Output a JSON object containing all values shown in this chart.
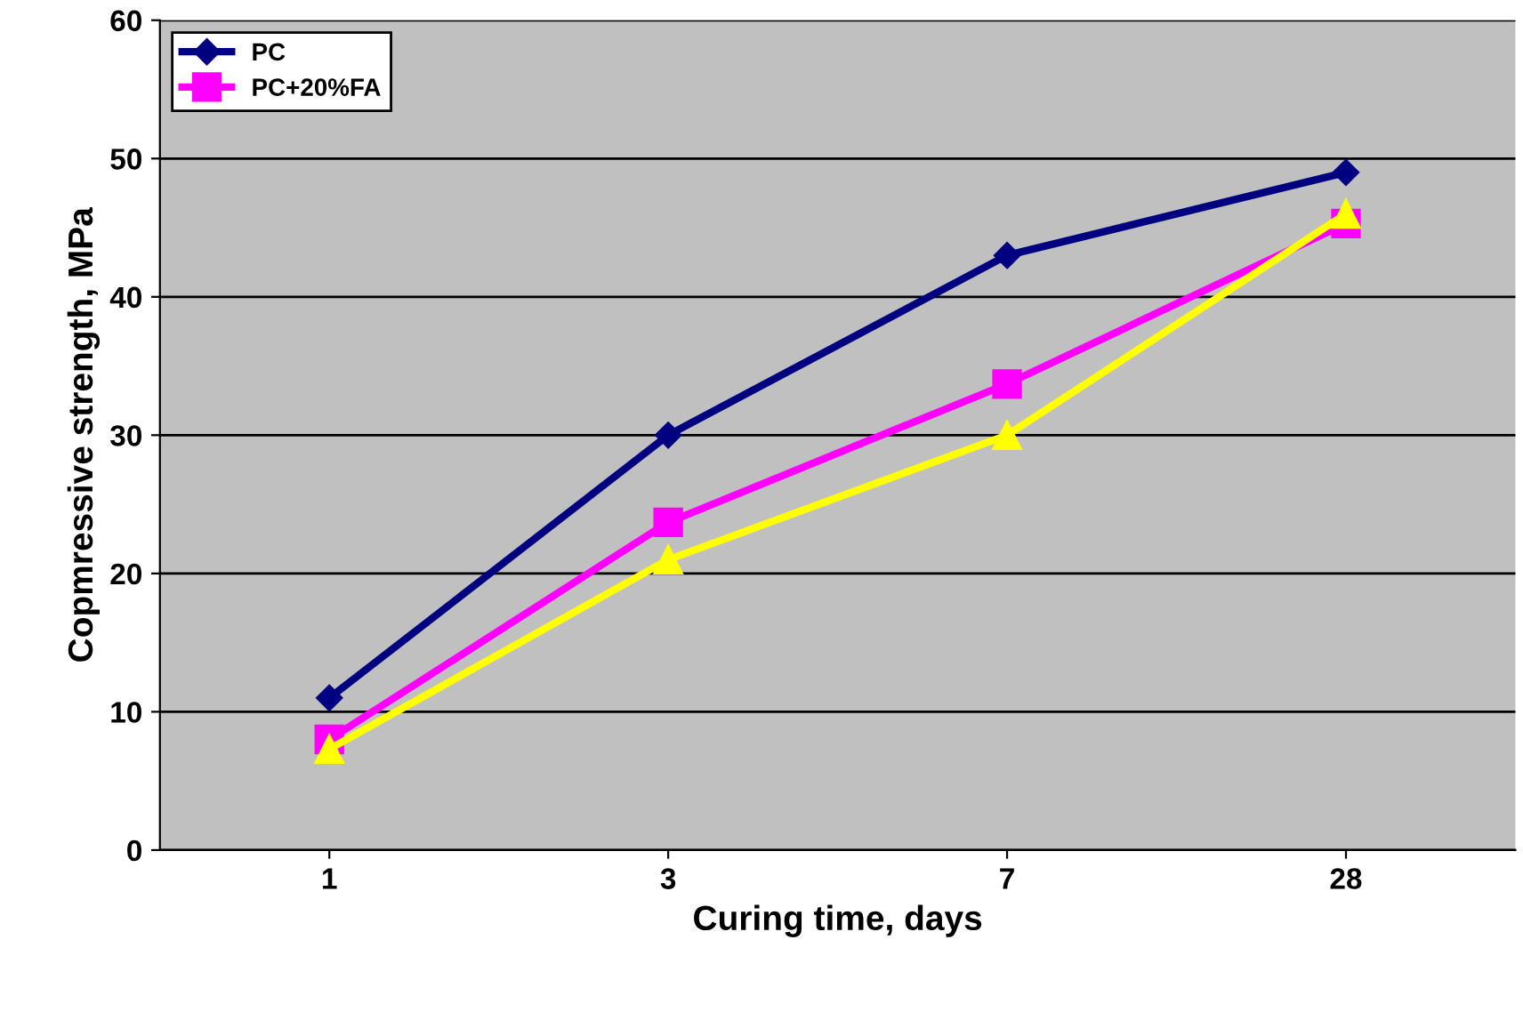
{
  "chart_data": {
    "type": "line",
    "xlabel": "Curing time, days",
    "ylabel": "Copmressive strength, MPa",
    "categories": [
      "1",
      "3",
      "7",
      "28"
    ],
    "series": [
      {
        "name": "PC",
        "color": "#000080",
        "marker": "diamond",
        "values": [
          11,
          30,
          43,
          49
        ]
      },
      {
        "name": "PC+20%FA",
        "color": "#ff00ff",
        "marker": "square",
        "values": [
          8,
          23.7,
          33.7,
          45.3
        ]
      },
      {
        "color": "#ffff00",
        "marker": "triangle",
        "values": [
          7.3,
          21,
          30,
          46
        ]
      }
    ],
    "ylim": [
      0,
      60
    ],
    "yticks": [
      0,
      10,
      20,
      30,
      40,
      50,
      60
    ],
    "grid": "y",
    "legend": "top left"
  }
}
